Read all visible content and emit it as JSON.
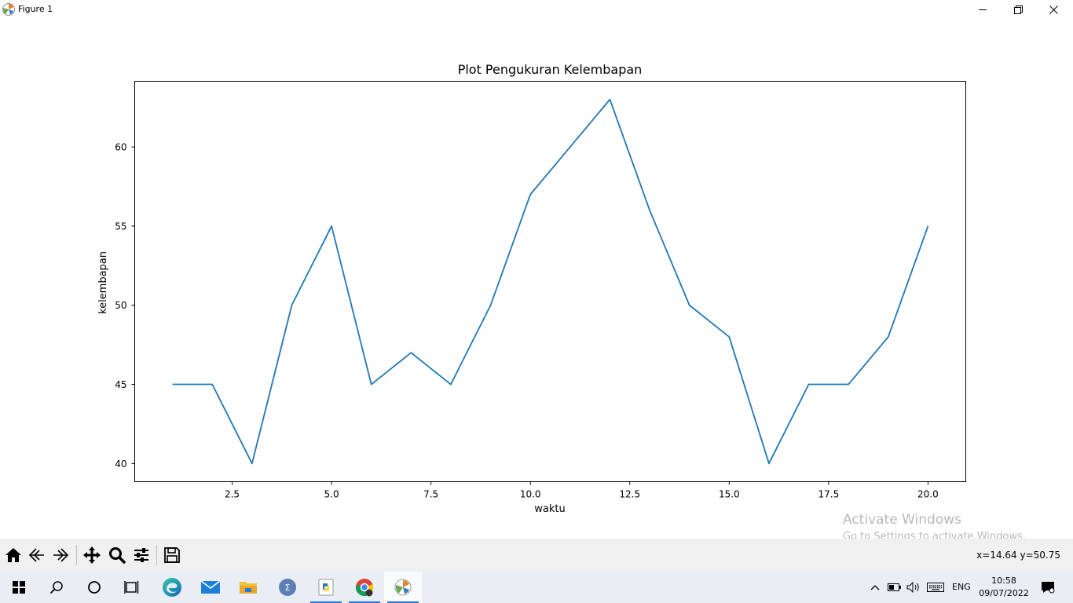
{
  "window": {
    "title": "Figure 1",
    "controls": [
      "minimize",
      "restore",
      "close"
    ]
  },
  "chart_data": {
    "type": "line",
    "title": "Plot Pengukuran Kelembapan",
    "xlabel": "waktu",
    "ylabel": "kelembapan",
    "x": [
      1,
      2,
      3,
      4,
      5,
      6,
      7,
      8,
      9,
      10,
      11,
      12,
      13,
      14,
      15,
      16,
      17,
      18,
      19,
      20
    ],
    "series": [
      {
        "values": [
          45,
          45,
          40,
          50,
          55,
          45,
          47,
          45,
          50,
          57,
          60,
          63,
          56,
          50,
          48,
          40,
          45,
          45,
          48,
          55
        ]
      }
    ],
    "xlim": [
      0.05,
      20.95
    ],
    "ylim": [
      38.85,
      64.15
    ],
    "xticks": [
      2.5,
      5.0,
      7.5,
      10.0,
      12.5,
      15.0,
      17.5,
      20.0
    ],
    "xtick_labels": [
      "2.5",
      "5.0",
      "7.5",
      "10.0",
      "12.5",
      "15.0",
      "17.5",
      "20.0"
    ],
    "yticks": [
      40,
      45,
      50,
      55,
      60
    ],
    "ytick_labels": [
      "40",
      "45",
      "50",
      "55",
      "60"
    ],
    "line_color": "#1f77b4",
    "grid": false,
    "legend": "none"
  },
  "toolbar": {
    "buttons": [
      "home-icon",
      "back-icon",
      "forward-icon",
      "pan-icon",
      "zoom-icon",
      "configure-subplots-icon",
      "save-icon"
    ],
    "coords": "x=14.64 y=50.75"
  },
  "watermark": {
    "line1": "Activate Windows",
    "line2": "Go to Settings to activate Windows."
  },
  "taskbar": {
    "apps": [
      "start-icon",
      "search-icon",
      "cortana-icon",
      "task-view-icon",
      "edge-icon",
      "mail-icon",
      "file-explorer-icon",
      "maxima-icon",
      "python-icon",
      "chrome-icon",
      "matplotlib-icon"
    ],
    "language": "ENG",
    "time": "10:58",
    "date": "09/07/2022"
  }
}
